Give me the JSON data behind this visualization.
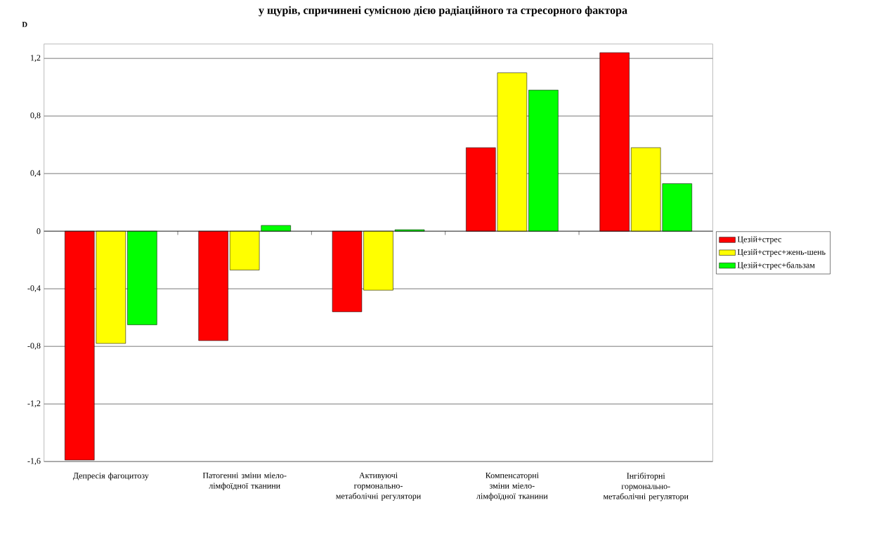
{
  "chart_data": {
    "type": "bar",
    "title": "у щурів, спричинені сумісною дією радіаційного та стресорного фактора",
    "ylabel": "D",
    "categories": [
      "Депресія фагоцитозу",
      "Патогенні зміни міело-лімфоїдної тканини",
      "Активуючі гормонально-метаболічні регулятори",
      "Компенсаторні зміни міело-лімфоїдної тканини",
      "Інгібіторні гормонально-метаболічні регулятори"
    ],
    "series": [
      {
        "name": "Цезій+стрес",
        "color": "#ff0000",
        "values": [
          -1.59,
          -0.76,
          -0.56,
          0.58,
          1.24
        ]
      },
      {
        "name": "Цезій+стрес+жень-шень",
        "color": "#ffff00",
        "values": [
          -0.78,
          -0.27,
          -0.41,
          1.1,
          0.58
        ]
      },
      {
        "name": "Цезій+стрес+бальзам",
        "color": "#00ff00",
        "values": [
          -0.65,
          0.04,
          0.01,
          0.98,
          0.33
        ]
      }
    ],
    "ylim": [
      -1.6,
      1.3
    ],
    "yticks": [
      {
        "value": -1.6,
        "label": "-1,6"
      },
      {
        "value": -1.2,
        "label": "-1,2"
      },
      {
        "value": -0.8,
        "label": "-0,8"
      },
      {
        "value": -0.4,
        "label": "-0,4"
      },
      0,
      {
        "value": 0.4,
        "label": "0,4"
      },
      {
        "value": 0.8,
        "label": "0,8"
      },
      {
        "value": 1.2,
        "label": "1,2"
      }
    ],
    "grid": "y",
    "legend": "right"
  }
}
